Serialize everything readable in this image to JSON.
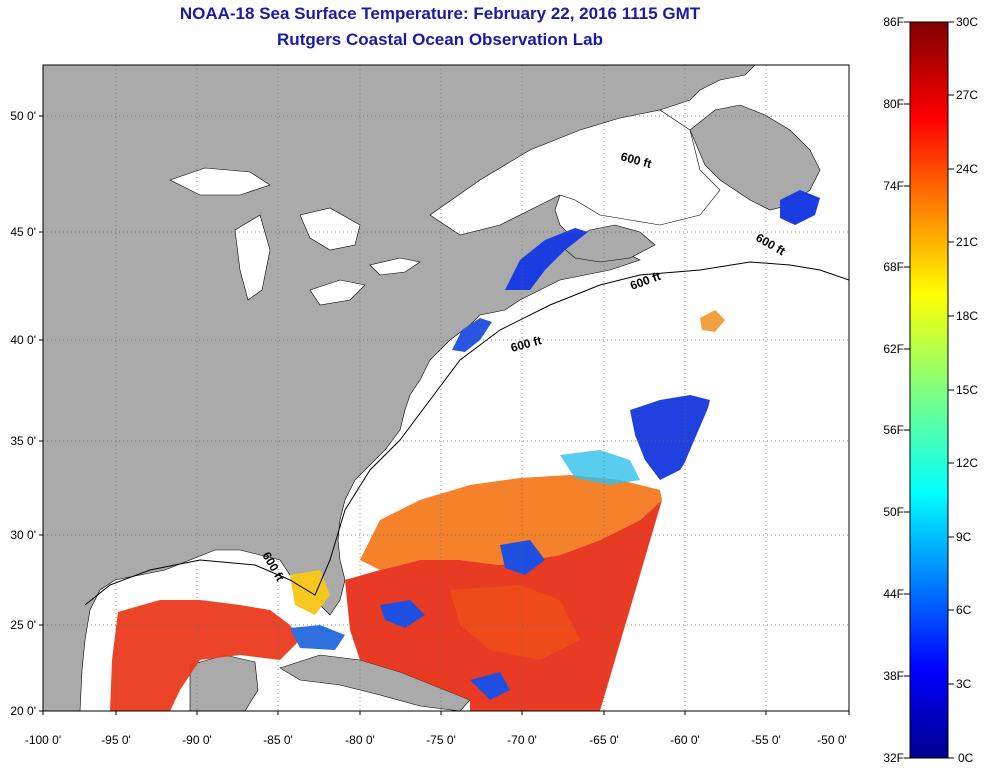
{
  "title": "NOAA-18 Sea Surface Temperature:  February 22, 2016 1115 GMT",
  "subtitle": "Rutgers Coastal Ocean Observation Lab",
  "lat_ticks": [
    "50 0'",
    "45 0'",
    "40 0'",
    "35 0'",
    "30 0'",
    "25 0'",
    "20 0'"
  ],
  "lon_ticks": [
    "-100 0'",
    "-95 0'",
    "-90 0'",
    "-85 0'",
    "-80 0'",
    "-75 0'",
    "-70 0'",
    "-65 0'",
    "-60 0'",
    "-55 0'",
    "-50 0'"
  ],
  "isobath_labels": [
    "600 ft",
    "600 ft",
    "600 ft",
    "600 ft",
    "600 ft"
  ],
  "colorbar": {
    "fahrenheit": [
      "86F",
      "80F",
      "74F",
      "68F",
      "62F",
      "56F",
      "50F",
      "44F",
      "38F",
      "32F"
    ],
    "celsius": [
      "30C",
      "27C",
      "24C",
      "21C",
      "18C",
      "15C",
      "12C",
      "9C",
      "6C",
      "3C",
      "0C"
    ]
  },
  "colors": {
    "title": "#1a1aa8",
    "land": "#aaaaaa",
    "no_data": "#ffffff",
    "warm": "#e8301a",
    "cold": "#1030d0"
  }
}
